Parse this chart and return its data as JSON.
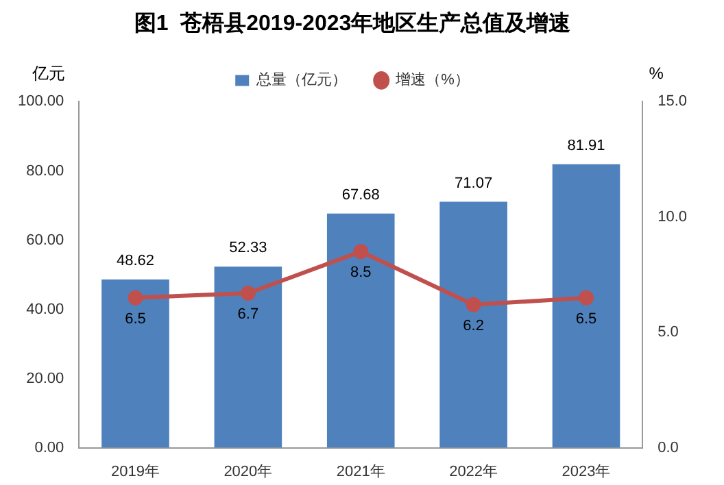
{
  "chart_data": {
    "type": "bar",
    "title": "图1  苍梧县2019-2023年地区生产总值及增速",
    "ylabel": "亿元",
    "y2label": "%",
    "categories": [
      "2019年",
      "2020年",
      "2021年",
      "2022年",
      "2023年"
    ],
    "series": [
      {
        "name": "总量（亿元）",
        "color": "#4f81bd",
        "values": [
          48.62,
          52.33,
          67.68,
          71.07,
          81.91
        ]
      },
      {
        "name": "增速（%）",
        "type": "line",
        "color": "#c0504d",
        "axis": "y2",
        "values": [
          6.5,
          6.7,
          8.5,
          6.2,
          6.5
        ]
      }
    ],
    "ylim": [
      0,
      100
    ],
    "yticks": [
      {
        "value": 0,
        "label": "0.00"
      },
      {
        "value": 20,
        "label": "20.00"
      },
      {
        "value": 40,
        "label": "40.00"
      },
      {
        "value": 60,
        "label": "60.00"
      },
      {
        "value": 80,
        "label": "80.00"
      },
      {
        "value": 100,
        "label": "100.00"
      }
    ],
    "y2lim": [
      0,
      15
    ],
    "y2ticks": [
      {
        "value": 0,
        "label": "0.0"
      },
      {
        "value": 5,
        "label": "5.0"
      },
      {
        "value": 10,
        "label": "10.0"
      },
      {
        "value": 15,
        "label": "15.0"
      }
    ],
    "grid": false,
    "legend": "top",
    "marker": "circle",
    "line_style": "solid",
    "data_labels": true
  }
}
